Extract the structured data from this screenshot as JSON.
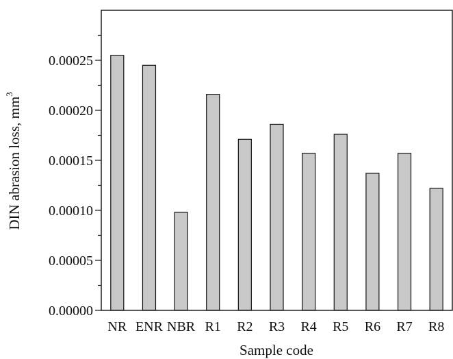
{
  "chart_data": {
    "type": "bar",
    "categories": [
      "NR",
      "ENR",
      "NBR",
      "R1",
      "R2",
      "R3",
      "R4",
      "R5",
      "R6",
      "R7",
      "R8"
    ],
    "values": [
      0.000255,
      0.000245,
      9.8e-05,
      0.000216,
      0.000171,
      0.000186,
      0.000157,
      0.000176,
      0.000137,
      0.000157,
      0.000122
    ],
    "title": "",
    "xlabel": "Sample code",
    "ylabel": "DIN abrasion loss, mm",
    "ylabel_superscript": "3",
    "ylim": [
      0,
      0.0003
    ],
    "yticks": [
      "0.00000",
      "0.00005",
      "0.00010",
      "0.00015",
      "0.00020",
      "0.00025"
    ],
    "bar_fill": "#c8c8c8",
    "bar_stroke": "#111111",
    "grid": false,
    "legend": "none"
  }
}
